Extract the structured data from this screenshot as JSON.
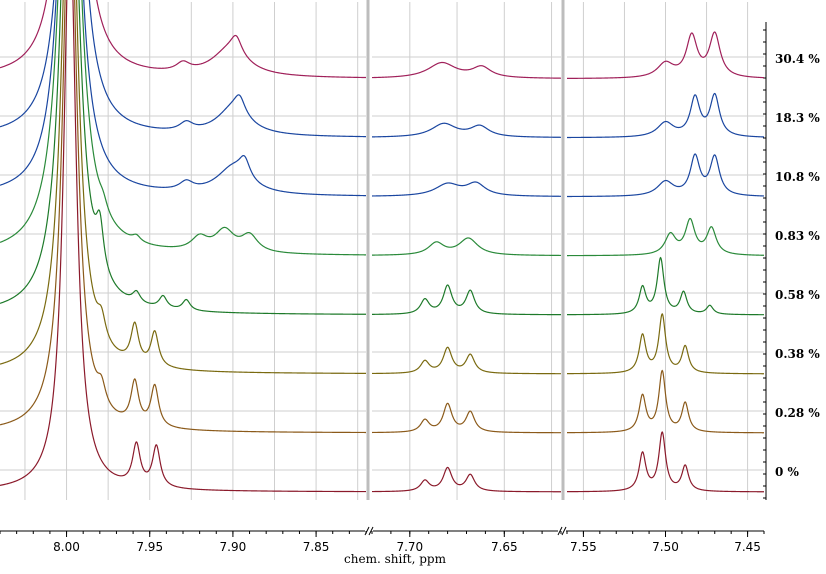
{
  "chart_data": {
    "type": "line",
    "title": "",
    "xlabel": "chem. shift, ppm",
    "ylabel": "",
    "x_reversed": true,
    "xlim": [
      8.04,
      7.44
    ],
    "axis_break_after": [
      7.82,
      7.56
    ],
    "panels": [
      {
        "xlim": [
          8.04,
          7.82
        ]
      },
      {
        "xlim": [
          7.72,
          7.62
        ]
      },
      {
        "xlim": [
          7.56,
          7.44
        ]
      }
    ],
    "x_ticks": [
      {
        "value": 8.0,
        "label": "8.00"
      },
      {
        "value": 7.95,
        "label": "7.95"
      },
      {
        "value": 7.9,
        "label": "7.90"
      },
      {
        "value": 7.85,
        "label": "7.85"
      },
      {
        "value": 7.7,
        "label": "7.70"
      },
      {
        "value": 7.65,
        "label": "7.65"
      },
      {
        "value": 7.55,
        "label": "7.55"
      },
      {
        "value": 7.5,
        "label": "7.50"
      },
      {
        "value": 7.45,
        "label": "7.45"
      }
    ],
    "grid": true,
    "stacked_offset": true,
    "series": [
      {
        "name": "0 %",
        "label": "0 %",
        "color": "#8b1a2b",
        "peaks": [
          {
            "x": 7.998,
            "h": 12.0,
            "w": 0.0045
          },
          {
            "x": 7.958,
            "h": 0.85,
            "w": 0.0028
          },
          {
            "x": 7.946,
            "h": 0.85,
            "w": 0.0028
          },
          {
            "x": 7.692,
            "h": 0.22,
            "w": 0.0028
          },
          {
            "x": 7.68,
            "h": 0.48,
            "w": 0.0028
          },
          {
            "x": 7.668,
            "h": 0.34,
            "w": 0.0028
          },
          {
            "x": 7.514,
            "h": 0.78,
            "w": 0.0025
          },
          {
            "x": 7.502,
            "h": 1.2,
            "w": 0.0025
          },
          {
            "x": 7.488,
            "h": 0.52,
            "w": 0.0025
          }
        ]
      },
      {
        "name": "0.28 %",
        "label": "0.28 %",
        "color": "#8b5a1a",
        "peaks": [
          {
            "x": 7.998,
            "h": 12.0,
            "w": 0.005
          },
          {
            "x": 7.979,
            "h": 0.4,
            "w": 0.003
          },
          {
            "x": 7.959,
            "h": 0.88,
            "w": 0.0028
          },
          {
            "x": 7.947,
            "h": 0.85,
            "w": 0.0028
          },
          {
            "x": 7.692,
            "h": 0.25,
            "w": 0.0028
          },
          {
            "x": 7.68,
            "h": 0.58,
            "w": 0.0028
          },
          {
            "x": 7.668,
            "h": 0.42,
            "w": 0.0028
          },
          {
            "x": 7.514,
            "h": 0.75,
            "w": 0.0025
          },
          {
            "x": 7.502,
            "h": 1.25,
            "w": 0.0025
          },
          {
            "x": 7.488,
            "h": 0.6,
            "w": 0.0025
          }
        ]
      },
      {
        "name": "0.38 %",
        "label": "0.38 %",
        "color": "#7a6a10",
        "peaks": [
          {
            "x": 7.998,
            "h": 12.0,
            "w": 0.0055
          },
          {
            "x": 7.979,
            "h": 0.45,
            "w": 0.003
          },
          {
            "x": 7.959,
            "h": 0.8,
            "w": 0.0028
          },
          {
            "x": 7.947,
            "h": 0.72,
            "w": 0.0028
          },
          {
            "x": 7.692,
            "h": 0.25,
            "w": 0.0028
          },
          {
            "x": 7.68,
            "h": 0.52,
            "w": 0.0028
          },
          {
            "x": 7.668,
            "h": 0.38,
            "w": 0.0028
          },
          {
            "x": 7.514,
            "h": 0.78,
            "w": 0.0025
          },
          {
            "x": 7.502,
            "h": 1.2,
            "w": 0.0025
          },
          {
            "x": 7.488,
            "h": 0.55,
            "w": 0.0025
          }
        ]
      },
      {
        "name": "0.58 %",
        "label": "0.58 %",
        "color": "#1e7a2a",
        "peaks": [
          {
            "x": 7.998,
            "h": 12.0,
            "w": 0.006
          },
          {
            "x": 7.98,
            "h": 0.95,
            "w": 0.0028
          },
          {
            "x": 7.958,
            "h": 0.22,
            "w": 0.0028
          },
          {
            "x": 7.942,
            "h": 0.25,
            "w": 0.0028
          },
          {
            "x": 7.928,
            "h": 0.22,
            "w": 0.0028
          },
          {
            "x": 7.692,
            "h": 0.3,
            "w": 0.0028
          },
          {
            "x": 7.68,
            "h": 0.58,
            "w": 0.0028
          },
          {
            "x": 7.668,
            "h": 0.48,
            "w": 0.0028
          },
          {
            "x": 7.514,
            "h": 0.55,
            "w": 0.0025
          },
          {
            "x": 7.503,
            "h": 1.15,
            "w": 0.0025
          },
          {
            "x": 7.489,
            "h": 0.45,
            "w": 0.0025
          },
          {
            "x": 7.473,
            "h": 0.18,
            "w": 0.0025
          }
        ]
      },
      {
        "name": "0.83 %",
        "label": "0.83 %",
        "color": "#2a8a3a",
        "peaks": [
          {
            "x": 7.998,
            "h": 12.0,
            "w": 0.0065
          },
          {
            "x": 7.978,
            "h": 0.2,
            "w": 0.003
          },
          {
            "x": 7.958,
            "h": 0.12,
            "w": 0.003
          },
          {
            "x": 7.92,
            "h": 0.28,
            "w": 0.006
          },
          {
            "x": 7.905,
            "h": 0.45,
            "w": 0.007
          },
          {
            "x": 7.89,
            "h": 0.35,
            "w": 0.006
          },
          {
            "x": 7.686,
            "h": 0.25,
            "w": 0.005
          },
          {
            "x": 7.669,
            "h": 0.35,
            "w": 0.006
          },
          {
            "x": 7.497,
            "h": 0.42,
            "w": 0.004
          },
          {
            "x": 7.485,
            "h": 0.7,
            "w": 0.0035
          },
          {
            "x": 7.472,
            "h": 0.55,
            "w": 0.0035
          }
        ]
      },
      {
        "name": "10.8 %",
        "label": "10.8 %",
        "color": "#1a46a0",
        "peaks": [
          {
            "x": 7.998,
            "h": 12.0,
            "w": 0.006
          },
          {
            "x": 7.928,
            "h": 0.18,
            "w": 0.005
          },
          {
            "x": 7.9,
            "h": 0.55,
            "w": 0.012
          },
          {
            "x": 7.893,
            "h": 0.4,
            "w": 0.004
          },
          {
            "x": 7.68,
            "h": 0.25,
            "w": 0.008
          },
          {
            "x": 7.665,
            "h": 0.25,
            "w": 0.006
          },
          {
            "x": 7.5,
            "h": 0.3,
            "w": 0.006
          },
          {
            "x": 7.482,
            "h": 0.8,
            "w": 0.0035
          },
          {
            "x": 7.47,
            "h": 0.8,
            "w": 0.0035
          }
        ]
      },
      {
        "name": "18.3 %",
        "label": "18.3 %",
        "color": "#1a46a0",
        "peaks": [
          {
            "x": 7.997,
            "h": 12.0,
            "w": 0.006
          },
          {
            "x": 7.928,
            "h": 0.18,
            "w": 0.005
          },
          {
            "x": 7.9,
            "h": 0.55,
            "w": 0.012
          },
          {
            "x": 7.896,
            "h": 0.35,
            "w": 0.004
          },
          {
            "x": 7.682,
            "h": 0.28,
            "w": 0.008
          },
          {
            "x": 7.663,
            "h": 0.22,
            "w": 0.006
          },
          {
            "x": 7.5,
            "h": 0.3,
            "w": 0.006
          },
          {
            "x": 7.482,
            "h": 0.8,
            "w": 0.0035
          },
          {
            "x": 7.47,
            "h": 0.85,
            "w": 0.0035
          }
        ]
      },
      {
        "name": "30.4 %",
        "label": "30.4 %",
        "color": "#a0205a",
        "peaks": [
          {
            "x": 7.997,
            "h": 12.0,
            "w": 0.006
          },
          {
            "x": 7.93,
            "h": 0.18,
            "w": 0.005
          },
          {
            "x": 7.902,
            "h": 0.55,
            "w": 0.013
          },
          {
            "x": 7.898,
            "h": 0.35,
            "w": 0.004
          },
          {
            "x": 7.683,
            "h": 0.32,
            "w": 0.009
          },
          {
            "x": 7.662,
            "h": 0.22,
            "w": 0.006
          },
          {
            "x": 7.5,
            "h": 0.3,
            "w": 0.006
          },
          {
            "x": 7.484,
            "h": 0.85,
            "w": 0.004
          },
          {
            "x": 7.47,
            "h": 0.9,
            "w": 0.004
          }
        ]
      }
    ]
  }
}
